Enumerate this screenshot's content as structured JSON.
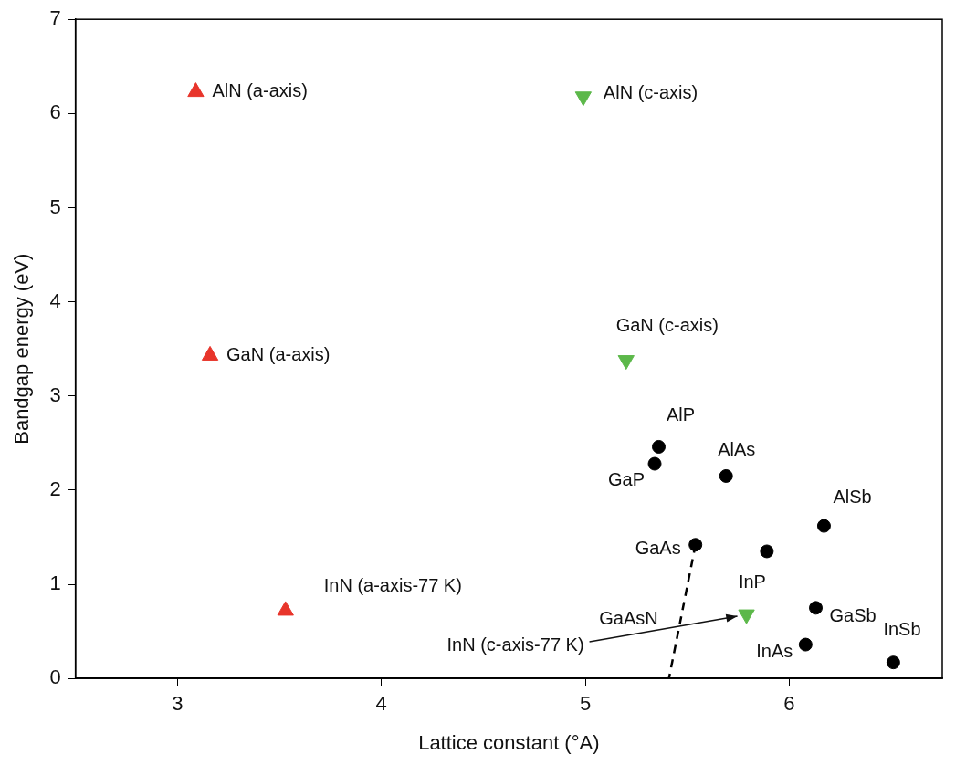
{
  "chart_data": {
    "type": "scatter",
    "x_label": "Lattice constant (°A)",
    "y_label": "Bandgap energy (eV)",
    "xlim": [
      2.5,
      6.75
    ],
    "ylim": [
      0,
      7
    ],
    "xticks": [
      3,
      4,
      5,
      6
    ],
    "yticks": [
      0,
      1,
      2,
      3,
      4,
      5,
      6,
      7
    ],
    "grid": false,
    "series": [
      {
        "color": "#e8352b",
        "marker": "triangle-up",
        "x": [
          3.09,
          3.16,
          3.53
        ],
        "y": [
          6.23,
          3.43,
          0.72
        ],
        "labels": [
          "AlN (a-axis)",
          "GaN (a-axis)",
          "InN (a-axis-77 K)"
        ]
      },
      {
        "color": "#5cb84a",
        "marker": "triangle-down",
        "x": [
          4.99,
          5.2,
          5.79
        ],
        "y": [
          6.18,
          3.38,
          0.68
        ],
        "labels": [
          "AlN (c-axis)",
          "GaN (c-axis)",
          "InN (c-axis-77 K)"
        ]
      },
      {
        "color": "#000000",
        "marker": "circle",
        "x": [
          5.36,
          5.34,
          5.69,
          6.17,
          5.54,
          5.89,
          6.13,
          6.08,
          6.51
        ],
        "y": [
          2.46,
          2.28,
          2.15,
          1.62,
          1.42,
          1.35,
          0.75,
          0.36,
          0.17
        ],
        "labels": [
          "AlP",
          "GaP",
          "AlAs",
          "AlSb",
          "GaAs",
          "InP",
          "GaSb",
          "InAs",
          "InSb"
        ]
      },
      {
        "color": "#000000",
        "marker": "none",
        "line_style": "dashed",
        "x": [
          5.54,
          5.41
        ],
        "y": [
          1.42,
          0
        ],
        "label": "GaAsN"
      }
    ]
  }
}
